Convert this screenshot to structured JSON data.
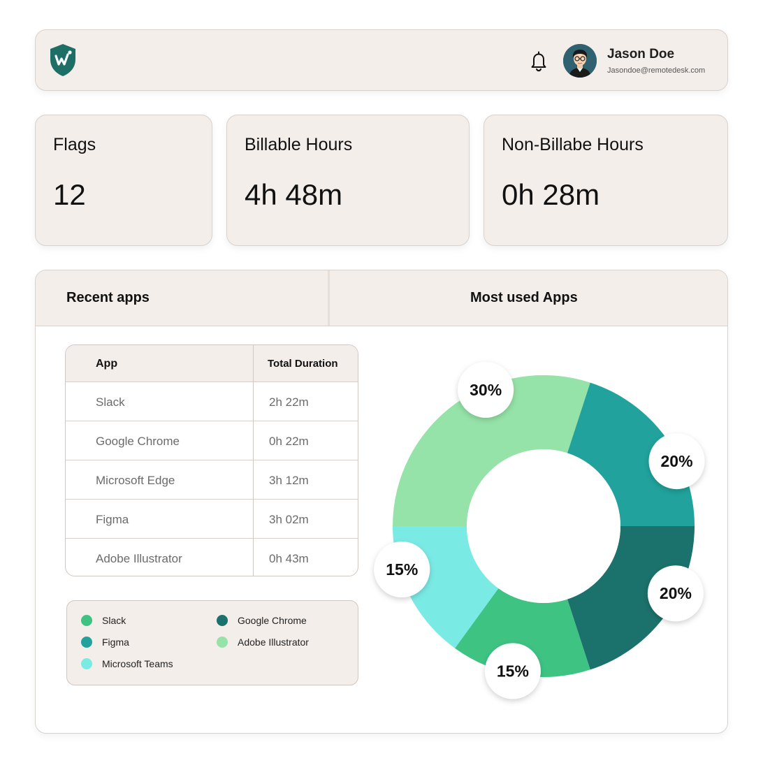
{
  "header": {
    "logo_icon": "shield-w-logo-icon",
    "bell_icon": "bell-icon",
    "user": {
      "name": "Jason Doe",
      "email": "Jasondoe@remotedesk.com"
    }
  },
  "stats": {
    "flags": {
      "label": "Flags",
      "value": "12"
    },
    "billable": {
      "label": "Billable Hours",
      "value": "4h 48m"
    },
    "non_billable": {
      "label": "Non-Billabe Hours",
      "value": "0h 28m"
    }
  },
  "panel": {
    "tab_recent": "Recent apps",
    "tab_most_used": "Most used Apps"
  },
  "table": {
    "headers": {
      "app": "App",
      "duration": "Total Duration"
    },
    "rows": [
      {
        "app": "Slack",
        "duration": "2h 22m"
      },
      {
        "app": "Google Chrome",
        "duration": "0h 22m"
      },
      {
        "app": "Microsoft Edge",
        "duration": "3h 12m"
      },
      {
        "app": "Figma",
        "duration": "3h 02m"
      },
      {
        "app": "Adobe Illustrator",
        "duration": "0h 43m"
      }
    ]
  },
  "legend": [
    {
      "label": "Slack",
      "color": "#3ec383"
    },
    {
      "label": "Google Chrome",
      "color": "#1b716b"
    },
    {
      "label": "Figma",
      "color": "#21a29c"
    },
    {
      "label": "Adobe Illustrator",
      "color": "#95e3a8"
    },
    {
      "label": "Microsoft Teams",
      "color": "#7aeae5"
    }
  ],
  "chart_data": {
    "type": "pie",
    "donut": true,
    "slices": [
      {
        "label": "30%",
        "value": 30,
        "color": "#95e3a8"
      },
      {
        "label": "20%",
        "value": 20,
        "color": "#21a29c"
      },
      {
        "label": "20%",
        "value": 20,
        "color": "#1b716b"
      },
      {
        "label": "15%",
        "value": 15,
        "color": "#3ec383"
      },
      {
        "label": "15%",
        "value": 15,
        "color": "#7aeae5"
      }
    ]
  }
}
